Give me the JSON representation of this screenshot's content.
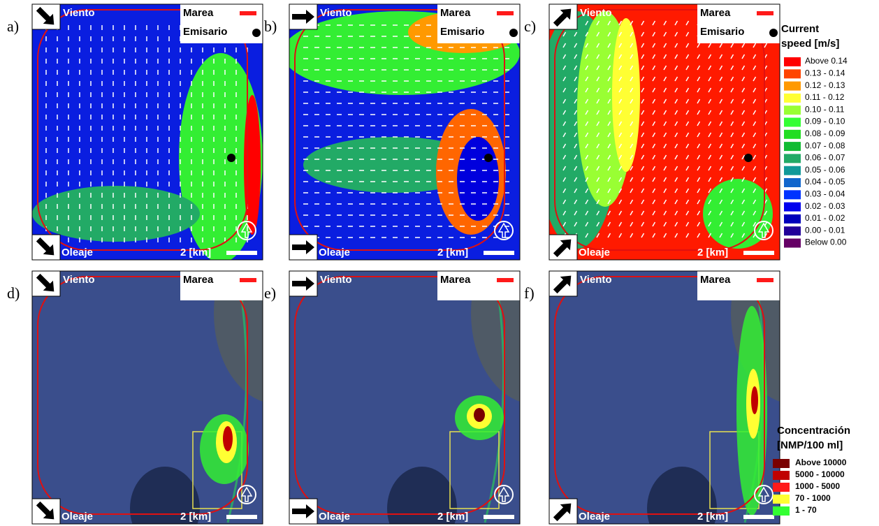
{
  "panels": [
    {
      "label": "a)",
      "wind": "Viento",
      "waves": "Oleaje",
      "tide": "Marea",
      "outfall": "Emisario",
      "scale": "2 [km]"
    },
    {
      "label": "b)",
      "wind": "Viento",
      "waves": "Oleaje",
      "tide": "Marea",
      "outfall": "Emisario",
      "scale": "2 [km]"
    },
    {
      "label": "c)",
      "wind": "Viento",
      "waves": "Oleaje",
      "tide": "Marea",
      "outfall": "Emisario",
      "scale": "2 [km]"
    },
    {
      "label": "d)",
      "wind": "Viento",
      "waves": "Oleaje",
      "tide": "Marea",
      "scale": "2 [km]"
    },
    {
      "label": "e)",
      "wind": "Viento",
      "waves": "Oleaje",
      "tide": "Marea",
      "scale": "2 [km]"
    },
    {
      "label": "f)",
      "wind": "Viento",
      "waves": "Oleaje",
      "tide": "Marea",
      "scale": "2 [km]"
    }
  ],
  "speed_legend": {
    "title_lines": [
      "Current",
      "speed [m/s]"
    ],
    "items": [
      {
        "label": "Above 0.14",
        "color": "#ff0000"
      },
      {
        "label": "0.13 - 0.14",
        "color": "#ff4400"
      },
      {
        "label": "0.12 - 0.13",
        "color": "#ff9900"
      },
      {
        "label": "0.11 - 0.12",
        "color": "#ffff33"
      },
      {
        "label": "0.10 - 0.11",
        "color": "#99ff33"
      },
      {
        "label": "0.09 - 0.10",
        "color": "#33ff33"
      },
      {
        "label": "0.08 - 0.09",
        "color": "#22dd22"
      },
      {
        "label": "0.07 - 0.08",
        "color": "#11bb33"
      },
      {
        "label": "0.06 - 0.07",
        "color": "#22aa66"
      },
      {
        "label": "0.05 - 0.06",
        "color": "#119999"
      },
      {
        "label": "0.04 - 0.05",
        "color": "#1166cc"
      },
      {
        "label": "0.03 - 0.04",
        "color": "#0033ff"
      },
      {
        "label": "0.02 - 0.03",
        "color": "#0000ee"
      },
      {
        "label": "0.01 - 0.02",
        "color": "#0000bb"
      },
      {
        "label": "0.00 - 0.01",
        "color": "#220099"
      },
      {
        "label": "Below 0.00",
        "color": "#660066"
      }
    ]
  },
  "concentration_legend": {
    "title_lines": [
      "Concentración",
      "[NMP/100 ml]"
    ],
    "items": [
      {
        "label": "Above 10000",
        "color": "#7a0000"
      },
      {
        "label": "5000 - 10000",
        "color": "#c00000"
      },
      {
        "label": "1000 -  5000",
        "color": "#ff1a1a"
      },
      {
        "label": "70 -  1000",
        "color": "#ffff33"
      },
      {
        "label": "1 -  70",
        "color": "#33ff33"
      }
    ]
  }
}
